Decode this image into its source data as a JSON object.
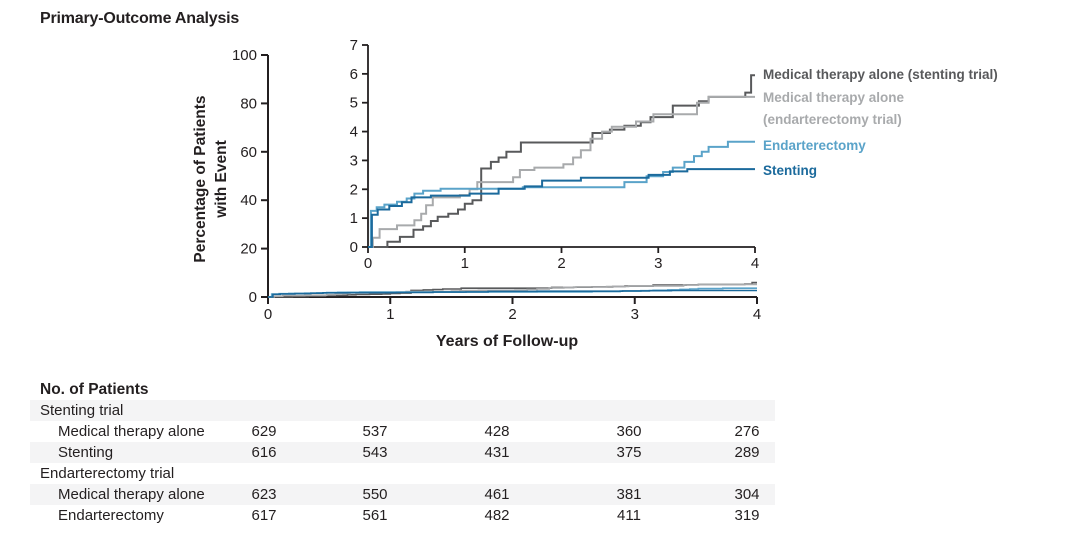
{
  "title": "Primary-Outcome Analysis",
  "chart_data": {
    "type": "line",
    "subtype": "kaplan-meier-step-curves",
    "title": "Primary-Outcome Analysis",
    "xlabel": "Years of Follow-up",
    "ylabel": "Percentage of Patients with Event",
    "ylabel_lines": [
      "Percentage of Patients",
      "with Event"
    ],
    "main_axis": {
      "xlim": [
        0,
        4
      ],
      "ylim": [
        0,
        100
      ],
      "xticks": [
        0,
        1,
        2,
        3,
        4
      ],
      "yticks": [
        0,
        20,
        40,
        60,
        80,
        100
      ],
      "grid": false
    },
    "inset_axis": {
      "xlim": [
        0,
        4
      ],
      "ylim": [
        0,
        7
      ],
      "xticks": [
        0,
        1,
        2,
        3,
        4
      ],
      "yticks": [
        0,
        1,
        2,
        3,
        4,
        5,
        6,
        7
      ],
      "grid": false
    },
    "series": [
      {
        "name": "Medical therapy alone (stenting trial)",
        "color": "#58595b",
        "steps": [
          [
            0,
            0
          ],
          [
            0.2,
            0.18
          ],
          [
            0.33,
            0.35
          ],
          [
            0.47,
            0.6
          ],
          [
            0.57,
            0.72
          ],
          [
            0.65,
            0.9
          ],
          [
            0.72,
            1.05
          ],
          [
            0.83,
            1.15
          ],
          [
            0.93,
            1.3
          ],
          [
            1.0,
            1.5
          ],
          [
            1.08,
            1.62
          ],
          [
            1.17,
            2.72
          ],
          [
            1.27,
            2.95
          ],
          [
            1.35,
            3.1
          ],
          [
            1.43,
            3.3
          ],
          [
            1.58,
            3.62
          ],
          [
            2.32,
            3.95
          ],
          [
            2.5,
            4.07
          ],
          [
            2.65,
            4.2
          ],
          [
            2.82,
            4.32
          ],
          [
            2.92,
            4.5
          ],
          [
            3.15,
            4.9
          ],
          [
            3.42,
            5.05
          ],
          [
            3.52,
            5.2
          ],
          [
            3.9,
            5.35
          ],
          [
            3.96,
            5.95
          ],
          [
            4.0,
            5.95
          ]
        ]
      },
      {
        "name": "Medical therapy alone (endarterectomy trial)",
        "color": "#a8aaac",
        "steps": [
          [
            0,
            0
          ],
          [
            0.05,
            0.32
          ],
          [
            0.12,
            0.62
          ],
          [
            0.3,
            0.75
          ],
          [
            0.48,
            0.93
          ],
          [
            0.55,
            1.15
          ],
          [
            0.6,
            1.45
          ],
          [
            0.67,
            1.72
          ],
          [
            0.95,
            1.8
          ],
          [
            1.05,
            2.0
          ],
          [
            1.13,
            2.25
          ],
          [
            1.5,
            2.42
          ],
          [
            1.57,
            2.67
          ],
          [
            1.72,
            2.75
          ],
          [
            2.02,
            2.87
          ],
          [
            2.12,
            3.1
          ],
          [
            2.2,
            3.35
          ],
          [
            2.3,
            3.75
          ],
          [
            2.42,
            4.0
          ],
          [
            2.52,
            4.17
          ],
          [
            2.77,
            4.35
          ],
          [
            2.95,
            4.6
          ],
          [
            3.4,
            5.0
          ],
          [
            3.52,
            5.2
          ],
          [
            4.0,
            5.2
          ]
        ]
      },
      {
        "name": "Endarterectomy",
        "color": "#5aa3c9",
        "steps": [
          [
            0,
            0
          ],
          [
            0.03,
            1.25
          ],
          [
            0.09,
            1.38
          ],
          [
            0.17,
            1.47
          ],
          [
            0.3,
            1.57
          ],
          [
            0.4,
            1.68
          ],
          [
            0.48,
            1.85
          ],
          [
            0.57,
            1.95
          ],
          [
            0.75,
            2.02
          ],
          [
            1.6,
            2.07
          ],
          [
            2.65,
            2.25
          ],
          [
            2.88,
            2.45
          ],
          [
            3.05,
            2.6
          ],
          [
            3.15,
            2.75
          ],
          [
            3.27,
            2.95
          ],
          [
            3.37,
            3.15
          ],
          [
            3.45,
            3.3
          ],
          [
            3.52,
            3.47
          ],
          [
            3.72,
            3.65
          ],
          [
            4.0,
            3.65
          ]
        ]
      },
      {
        "name": "Stenting",
        "color": "#1b6a9c",
        "steps": [
          [
            0,
            0
          ],
          [
            0.04,
            1.12
          ],
          [
            0.1,
            1.3
          ],
          [
            0.22,
            1.42
          ],
          [
            0.35,
            1.55
          ],
          [
            0.45,
            1.72
          ],
          [
            0.65,
            1.78
          ],
          [
            1.05,
            1.85
          ],
          [
            1.35,
            2.02
          ],
          [
            1.62,
            2.1
          ],
          [
            1.8,
            2.3
          ],
          [
            2.2,
            2.4
          ],
          [
            2.9,
            2.5
          ],
          [
            3.12,
            2.62
          ],
          [
            3.3,
            2.7
          ],
          [
            4.0,
            2.7
          ]
        ]
      }
    ],
    "legend_position": "right-of-inset"
  },
  "legend": {
    "entries": [
      {
        "lines": [
          "Medical therapy alone (stenting trial)"
        ],
        "color": "#58595b"
      },
      {
        "lines": [
          "Medical therapy alone",
          "(endarterectomy trial)"
        ],
        "color": "#a8aaac"
      },
      {
        "lines": [
          "Endarterectomy"
        ],
        "color": "#5aa3c9"
      },
      {
        "lines": [
          "Stenting"
        ],
        "color": "#1b6a9c"
      }
    ]
  },
  "table": {
    "title": "No. of Patients",
    "columns": [
      "0",
      "1",
      "2",
      "3",
      "4"
    ],
    "rows": [
      {
        "label": "Stenting trial",
        "indent": 0,
        "values": [],
        "striped": true
      },
      {
        "label": "Medical therapy alone",
        "indent": 1,
        "values": [
          "629",
          "537",
          "428",
          "360",
          "276"
        ],
        "striped": false
      },
      {
        "label": "Stenting",
        "indent": 1,
        "values": [
          "616",
          "543",
          "431",
          "375",
          "289"
        ],
        "striped": true
      },
      {
        "label": "Endarterectomy trial",
        "indent": 0,
        "values": [],
        "striped": false
      },
      {
        "label": "Medical therapy alone",
        "indent": 1,
        "values": [
          "623",
          "550",
          "461",
          "381",
          "304"
        ],
        "striped": true
      },
      {
        "label": "Endarterectomy",
        "indent": 1,
        "values": [
          "617",
          "561",
          "482",
          "411",
          "319"
        ],
        "striped": false
      }
    ]
  },
  "colors": {
    "text": "#231f20",
    "axis": "#231f20",
    "stripe": "#f4f4f5",
    "med_stent": "#58595b",
    "med_endar": "#a8aaac",
    "endarterectomy": "#5aa3c9",
    "stenting": "#1b6a9c"
  }
}
